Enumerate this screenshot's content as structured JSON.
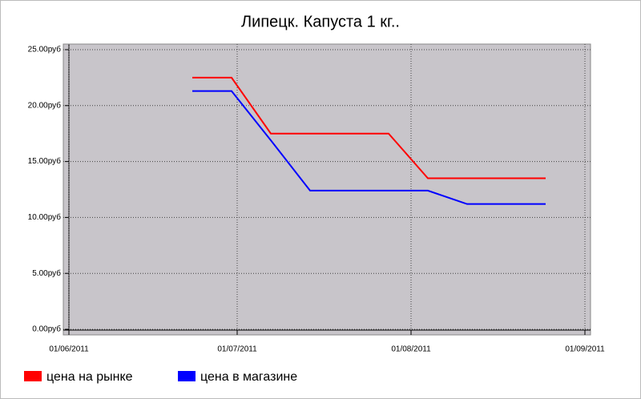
{
  "chart_data": {
    "type": "line",
    "title": "Липецк. Капуста 1 кг..",
    "x": [
      "2011-06-23",
      "2011-06-30",
      "2011-07-07",
      "2011-07-14",
      "2011-07-21",
      "2011-07-28",
      "2011-08-04",
      "2011-08-11",
      "2011-08-18",
      "2011-08-25"
    ],
    "series": [
      {
        "name": "цена на рынке",
        "color": "#ff0000",
        "values": [
          22.5,
          22.5,
          17.5,
          17.5,
          17.5,
          17.5,
          13.5,
          13.5,
          13.5,
          13.5
        ]
      },
      {
        "name": "цена в магазине",
        "color": "#0000ff",
        "values": [
          21.3,
          21.3,
          16.9,
          12.4,
          12.4,
          12.4,
          12.4,
          11.2,
          11.2,
          11.2
        ]
      }
    ],
    "xlim": [
      "2011-05-31",
      "2011-09-02"
    ],
    "xticks": [
      {
        "value": "2011-06-01",
        "label": "01/06/2011"
      },
      {
        "value": "2011-07-01",
        "label": "01/07/2011"
      },
      {
        "value": "2011-08-01",
        "label": "01/08/2011"
      },
      {
        "value": "2011-09-01",
        "label": "01/09/2011"
      }
    ],
    "ylim": [
      -0.5,
      25.5
    ],
    "yticks": [
      {
        "value": 0,
        "label": "0.00руб"
      },
      {
        "value": 5,
        "label": "5.00руб"
      },
      {
        "value": 10,
        "label": "10.00руб"
      },
      {
        "value": 15,
        "label": "15.00руб"
      },
      {
        "value": 20,
        "label": "20.00руб"
      },
      {
        "value": 25,
        "label": "25.00руб"
      }
    ],
    "grid": true,
    "legend": "bottom"
  }
}
